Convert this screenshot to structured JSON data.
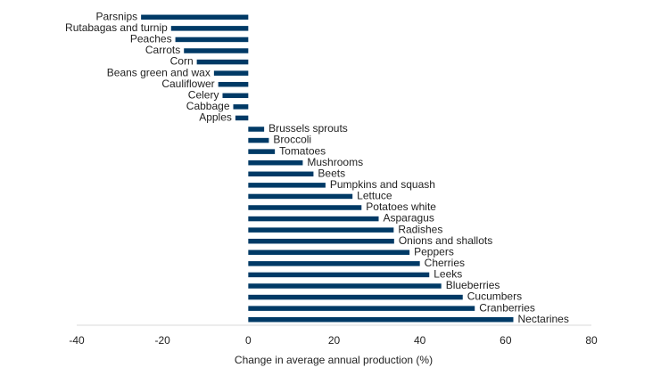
{
  "chart_data": {
    "type": "bar",
    "orientation": "horizontal",
    "x_label": "Change in average annual production (%)",
    "categories": [
      "Parsnips",
      "Rutabagas and turnip",
      "Peaches",
      "Carrots",
      "Corn",
      "Beans green and wax",
      "Cauliflower",
      "Celery",
      "Cabbage",
      "Apples",
      "Brussels sprouts",
      "Broccoli",
      "Tomatoes",
      "Mushrooms",
      "Beets",
      "Pumpkins and squash",
      "Lettuce",
      "Potatoes white",
      "Asparagus",
      "Radishes",
      "Onions and shallots",
      "Peppers",
      "Cherries",
      "Leeks",
      "Blueberries",
      "Cucumbers",
      "Cranberries",
      "Nectarines"
    ],
    "values": [
      -25,
      -18,
      -17,
      -15,
      -12,
      -8,
      -7,
      -6,
      -3.5,
      -3,
      3.7,
      4.8,
      6.2,
      12.7,
      15.2,
      18,
      24.3,
      26.4,
      30.4,
      33.9,
      34,
      37.6,
      40,
      42.2,
      45,
      50,
      52.8,
      61.8
    ],
    "color": "#003a66",
    "xlim": [
      -40,
      80
    ],
    "xticks": [
      -40,
      -20,
      0,
      20,
      40,
      60,
      80
    ],
    "grid": false
  }
}
